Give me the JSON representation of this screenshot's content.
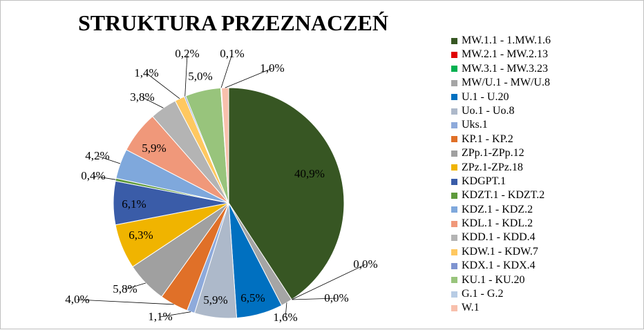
{
  "chart_data": {
    "type": "pie",
    "title": "STRUKTURA PRZEZNACZEŃ",
    "legend_position": "right",
    "slices": [
      {
        "name": "MW.1.1 - 1.MW.1.6",
        "value": 40.9,
        "label": "40,9%",
        "color": "#375623"
      },
      {
        "name": "MW.2.1 - MW.2.13",
        "value": 0.0,
        "label": "0,0%",
        "color": "#e00000"
      },
      {
        "name": "MW.3.1 - MW.3.23",
        "value": 0.0,
        "label": "0,0%",
        "color": "#00b050"
      },
      {
        "name": "MW/U.1 - MW/U.8",
        "value": 1.6,
        "label": "1,6%",
        "color": "#a5a5a5"
      },
      {
        "name": "U.1 - U.20",
        "value": 6.5,
        "label": "6,5%",
        "color": "#0070c0"
      },
      {
        "name": "Uo.1 - Uo.8",
        "value": 5.9,
        "label": "5,9%",
        "color": "#adb9ca"
      },
      {
        "name": "Uks.1",
        "value": 1.1,
        "label": "1,1%",
        "color": "#8eaadb"
      },
      {
        "name": "KP.1 - KP.2",
        "value": 4.0,
        "label": "4,0%",
        "color": "#e07028"
      },
      {
        "name": "ZPp.1-ZPp.12",
        "value": 5.8,
        "label": "5,8%",
        "color": "#a0a0a0"
      },
      {
        "name": "ZPz.1-ZPz.18",
        "value": 6.3,
        "label": "6,3%",
        "color": "#f0b400"
      },
      {
        "name": "KDGPT.1",
        "value": 6.1,
        "label": "6,1%",
        "color": "#3a5ca8"
      },
      {
        "name": "KDZT.1 - KDZT.2",
        "value": 0.4,
        "label": "0,4%",
        "color": "#5e9a3c"
      },
      {
        "name": "KDZ.1 - KDZ.2",
        "value": 4.2,
        "label": "4,2%",
        "color": "#7fa8dc"
      },
      {
        "name": "KDL.1 - KDL.2",
        "value": 5.9,
        "label": "5,9%",
        "color": "#f0987a"
      },
      {
        "name": "KDD.1 - KDD.4",
        "value": 3.8,
        "label": "3,8%",
        "color": "#b4b4b4"
      },
      {
        "name": "KDW.1 - KDW.7",
        "value": 1.4,
        "label": "1,4%",
        "color": "#ffc860"
      },
      {
        "name": "KDX.1 - KDX.4",
        "value": 0.2,
        "label": "0,2%",
        "color": "#7f94d0"
      },
      {
        "name": "KU.1 - KU.20",
        "value": 5.0,
        "label": "5,0%",
        "color": "#98c47c"
      },
      {
        "name": "G.1 - G.2",
        "value": 0.1,
        "label": "0,1%",
        "color": "#b8cce4"
      },
      {
        "name": "W.1",
        "value": 1.0,
        "label": "1,0%",
        "color": "#f8c0ac"
      }
    ]
  }
}
